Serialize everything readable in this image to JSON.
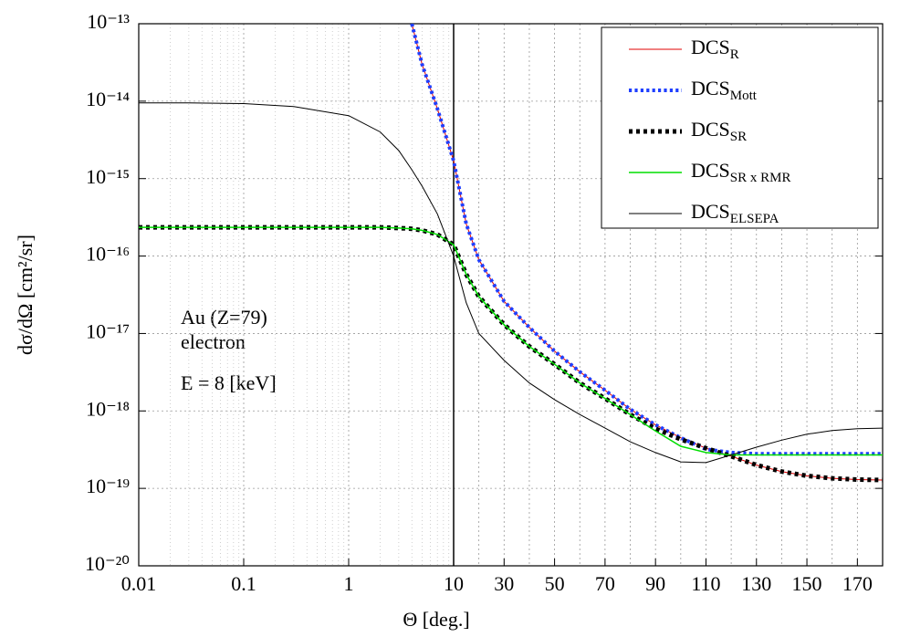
{
  "chart_data": {
    "type": "line",
    "xlabel": "Θ [deg.]",
    "ylabel": "dσ/dΩ [cm²/sr]",
    "annotations": [
      "Au (Z=79)",
      "electron",
      "E = 8 [keV]"
    ],
    "xscale": "log-linear",
    "xbreak": 10,
    "xlim": [
      0.01,
      180
    ],
    "xticks": [
      0.01,
      0.1,
      1,
      10,
      30,
      50,
      70,
      90,
      110,
      130,
      150,
      170
    ],
    "yscale": "log",
    "ylim": [
      1e-20,
      1e-13
    ],
    "yticks": [
      {
        "value": 1e-20,
        "label": "10⁻²⁰"
      },
      {
        "value": 1e-19,
        "label": "10⁻¹⁹"
      },
      {
        "value": 1e-18,
        "label": "10⁻¹⁸"
      },
      {
        "value": 1e-17,
        "label": "10⁻¹⁷"
      },
      {
        "value": 1e-16,
        "label": "10⁻¹⁶"
      },
      {
        "value": 1e-15,
        "label": "10⁻¹⁵"
      },
      {
        "value": 1e-14,
        "label": "10⁻¹⁴"
      },
      {
        "value": 1e-13,
        "label": "10⁻¹³"
      }
    ],
    "grid": true,
    "legend": "upper right",
    "x": [
      0.01,
      0.03,
      0.1,
      0.3,
      1,
      2,
      3,
      4,
      5,
      7,
      10,
      15,
      20,
      30,
      40,
      50,
      60,
      70,
      80,
      90,
      100,
      110,
      120,
      130,
      140,
      150,
      160,
      170,
      180
    ],
    "series": [
      {
        "name": "DCSR",
        "color": "#e00000",
        "line_style": "solid",
        "line_width": 1,
        "values": [
          null,
          null,
          null,
          null,
          null,
          null,
          null,
          1e-13,
          3e-14,
          8e-15,
          1.7e-15,
          2.6e-16,
          9e-17,
          2.6e-17,
          1.2e-17,
          5.9e-18,
          3.2e-18,
          1.85e-18,
          1.05e-18,
          6.6e-19,
          4.5e-19,
          3.3e-19,
          2.6e-19,
          2e-19,
          1.65e-19,
          1.45e-19,
          1.35e-19,
          1.3e-19,
          1.28e-19
        ]
      },
      {
        "name": "DCSMott",
        "color": "#1f3fff",
        "line_style": "dotted",
        "line_width": 4,
        "values": [
          null,
          null,
          null,
          null,
          null,
          null,
          null,
          1e-13,
          3e-14,
          8e-15,
          1.7e-15,
          2.6e-16,
          9e-17,
          2.6e-17,
          1.2e-17,
          5.9e-18,
          3.2e-18,
          1.85e-18,
          1.05e-18,
          6.6e-19,
          4.5e-19,
          3.2e-19,
          2.9e-19,
          2.8e-19,
          2.8e-19,
          2.8e-19,
          2.8e-19,
          2.8e-19,
          2.8e-19
        ]
      },
      {
        "name": "DCSSR",
        "color": "#000000",
        "line_style": "dotted",
        "line_width": 5,
        "values": [
          2.35e-16,
          2.35e-16,
          2.35e-16,
          2.35e-16,
          2.35e-16,
          2.35e-16,
          2.3e-16,
          2.25e-16,
          2.15e-16,
          1.9e-16,
          1.4e-16,
          5.8e-17,
          3e-17,
          1.3e-17,
          6.8e-18,
          4e-18,
          2.3e-18,
          1.45e-18,
          9e-19,
          5.9e-19,
          4.3e-19,
          3.3e-19,
          2.6e-19,
          2e-19,
          1.65e-19,
          1.45e-19,
          1.35e-19,
          1.3e-19,
          1.28e-19
        ]
      },
      {
        "name": "DCSSR x RMR",
        "color": "#00dd00",
        "line_style": "solid",
        "line_width": 1.5,
        "values": [
          2.35e-16,
          2.35e-16,
          2.35e-16,
          2.35e-16,
          2.35e-16,
          2.35e-16,
          2.3e-16,
          2.25e-16,
          2.15e-16,
          1.9e-16,
          1.4e-16,
          5.8e-17,
          3e-17,
          1.3e-17,
          6.8e-18,
          4e-18,
          2.3e-18,
          1.45e-18,
          9e-19,
          5.5e-19,
          3.5e-19,
          2.9e-19,
          2.7e-19,
          2.7e-19,
          2.7e-19,
          2.7e-19,
          2.7e-19,
          2.7e-19,
          2.7e-19
        ]
      },
      {
        "name": "DCSELSEPA",
        "color": "#000000",
        "line_style": "solid",
        "line_width": 1,
        "values": [
          9.5e-15,
          9.5e-15,
          9.3e-15,
          8.5e-15,
          6.5e-15,
          4e-15,
          2.3e-15,
          1.3e-15,
          8e-16,
          3.5e-16,
          1e-16,
          2.5e-17,
          1e-17,
          4.5e-18,
          2.3e-18,
          1.4e-18,
          9e-19,
          6e-19,
          4e-19,
          2.9e-19,
          2.2e-19,
          2.15e-19,
          2.7e-19,
          3.4e-19,
          4.2e-19,
          5e-19,
          5.6e-19,
          5.9e-19,
          6e-19
        ]
      }
    ]
  }
}
